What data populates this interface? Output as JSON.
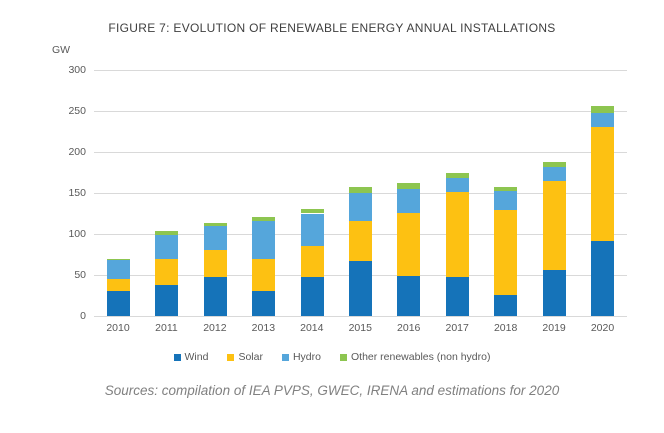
{
  "title": "FIGURE 7: EVOLUTION OF RENEWABLE ENERGY ANNUAL INSTALLATIONS",
  "source": "Sources: compilation of IEA PVPS, GWEC, IRENA and estimations for 2020",
  "colors": {
    "wind": "#1573b9",
    "solar": "#fdc112",
    "hydro": "#55a6db",
    "other": "#8dc550",
    "gridline": "#d9d9d9",
    "axis_text": "#595959",
    "title_text": "#3f3f3f",
    "source_text": "#808080"
  },
  "chart_data": {
    "type": "bar",
    "stacked": true,
    "title": "FIGURE 7: EVOLUTION OF RENEWABLE ENERGY ANNUAL INSTALLATIONS",
    "ylabel": "GW",
    "xlabel": "",
    "ylim": [
      0,
      300
    ],
    "yticks": [
      0,
      50,
      100,
      150,
      200,
      250,
      300
    ],
    "grid": true,
    "legend_position": "bottom",
    "categories": [
      "2010",
      "2011",
      "2012",
      "2013",
      "2014",
      "2015",
      "2016",
      "2017",
      "2018",
      "2019",
      "2020"
    ],
    "series": [
      {
        "name": "Wind",
        "color": "#1573b9",
        "values": [
          30,
          38,
          48,
          31,
          47,
          67,
          49,
          47,
          26,
          56,
          92
        ]
      },
      {
        "name": "Solar",
        "color": "#fdc112",
        "values": [
          15,
          31,
          32,
          38,
          38,
          49,
          77,
          104,
          103,
          109,
          138
        ]
      },
      {
        "name": "Hydro",
        "color": "#55a6db",
        "values": [
          24,
          30,
          30,
          47,
          40,
          34,
          29,
          17,
          23,
          17,
          18
        ]
      },
      {
        "name": "Other renewables (non hydro)",
        "color": "#8dc550",
        "values": [
          1,
          5,
          4,
          5,
          5,
          7,
          7,
          7,
          5,
          6,
          8
        ]
      }
    ],
    "totals": [
      70,
      104,
      114,
      121,
      130,
      157,
      162,
      175,
      157,
      188,
      256
    ]
  }
}
